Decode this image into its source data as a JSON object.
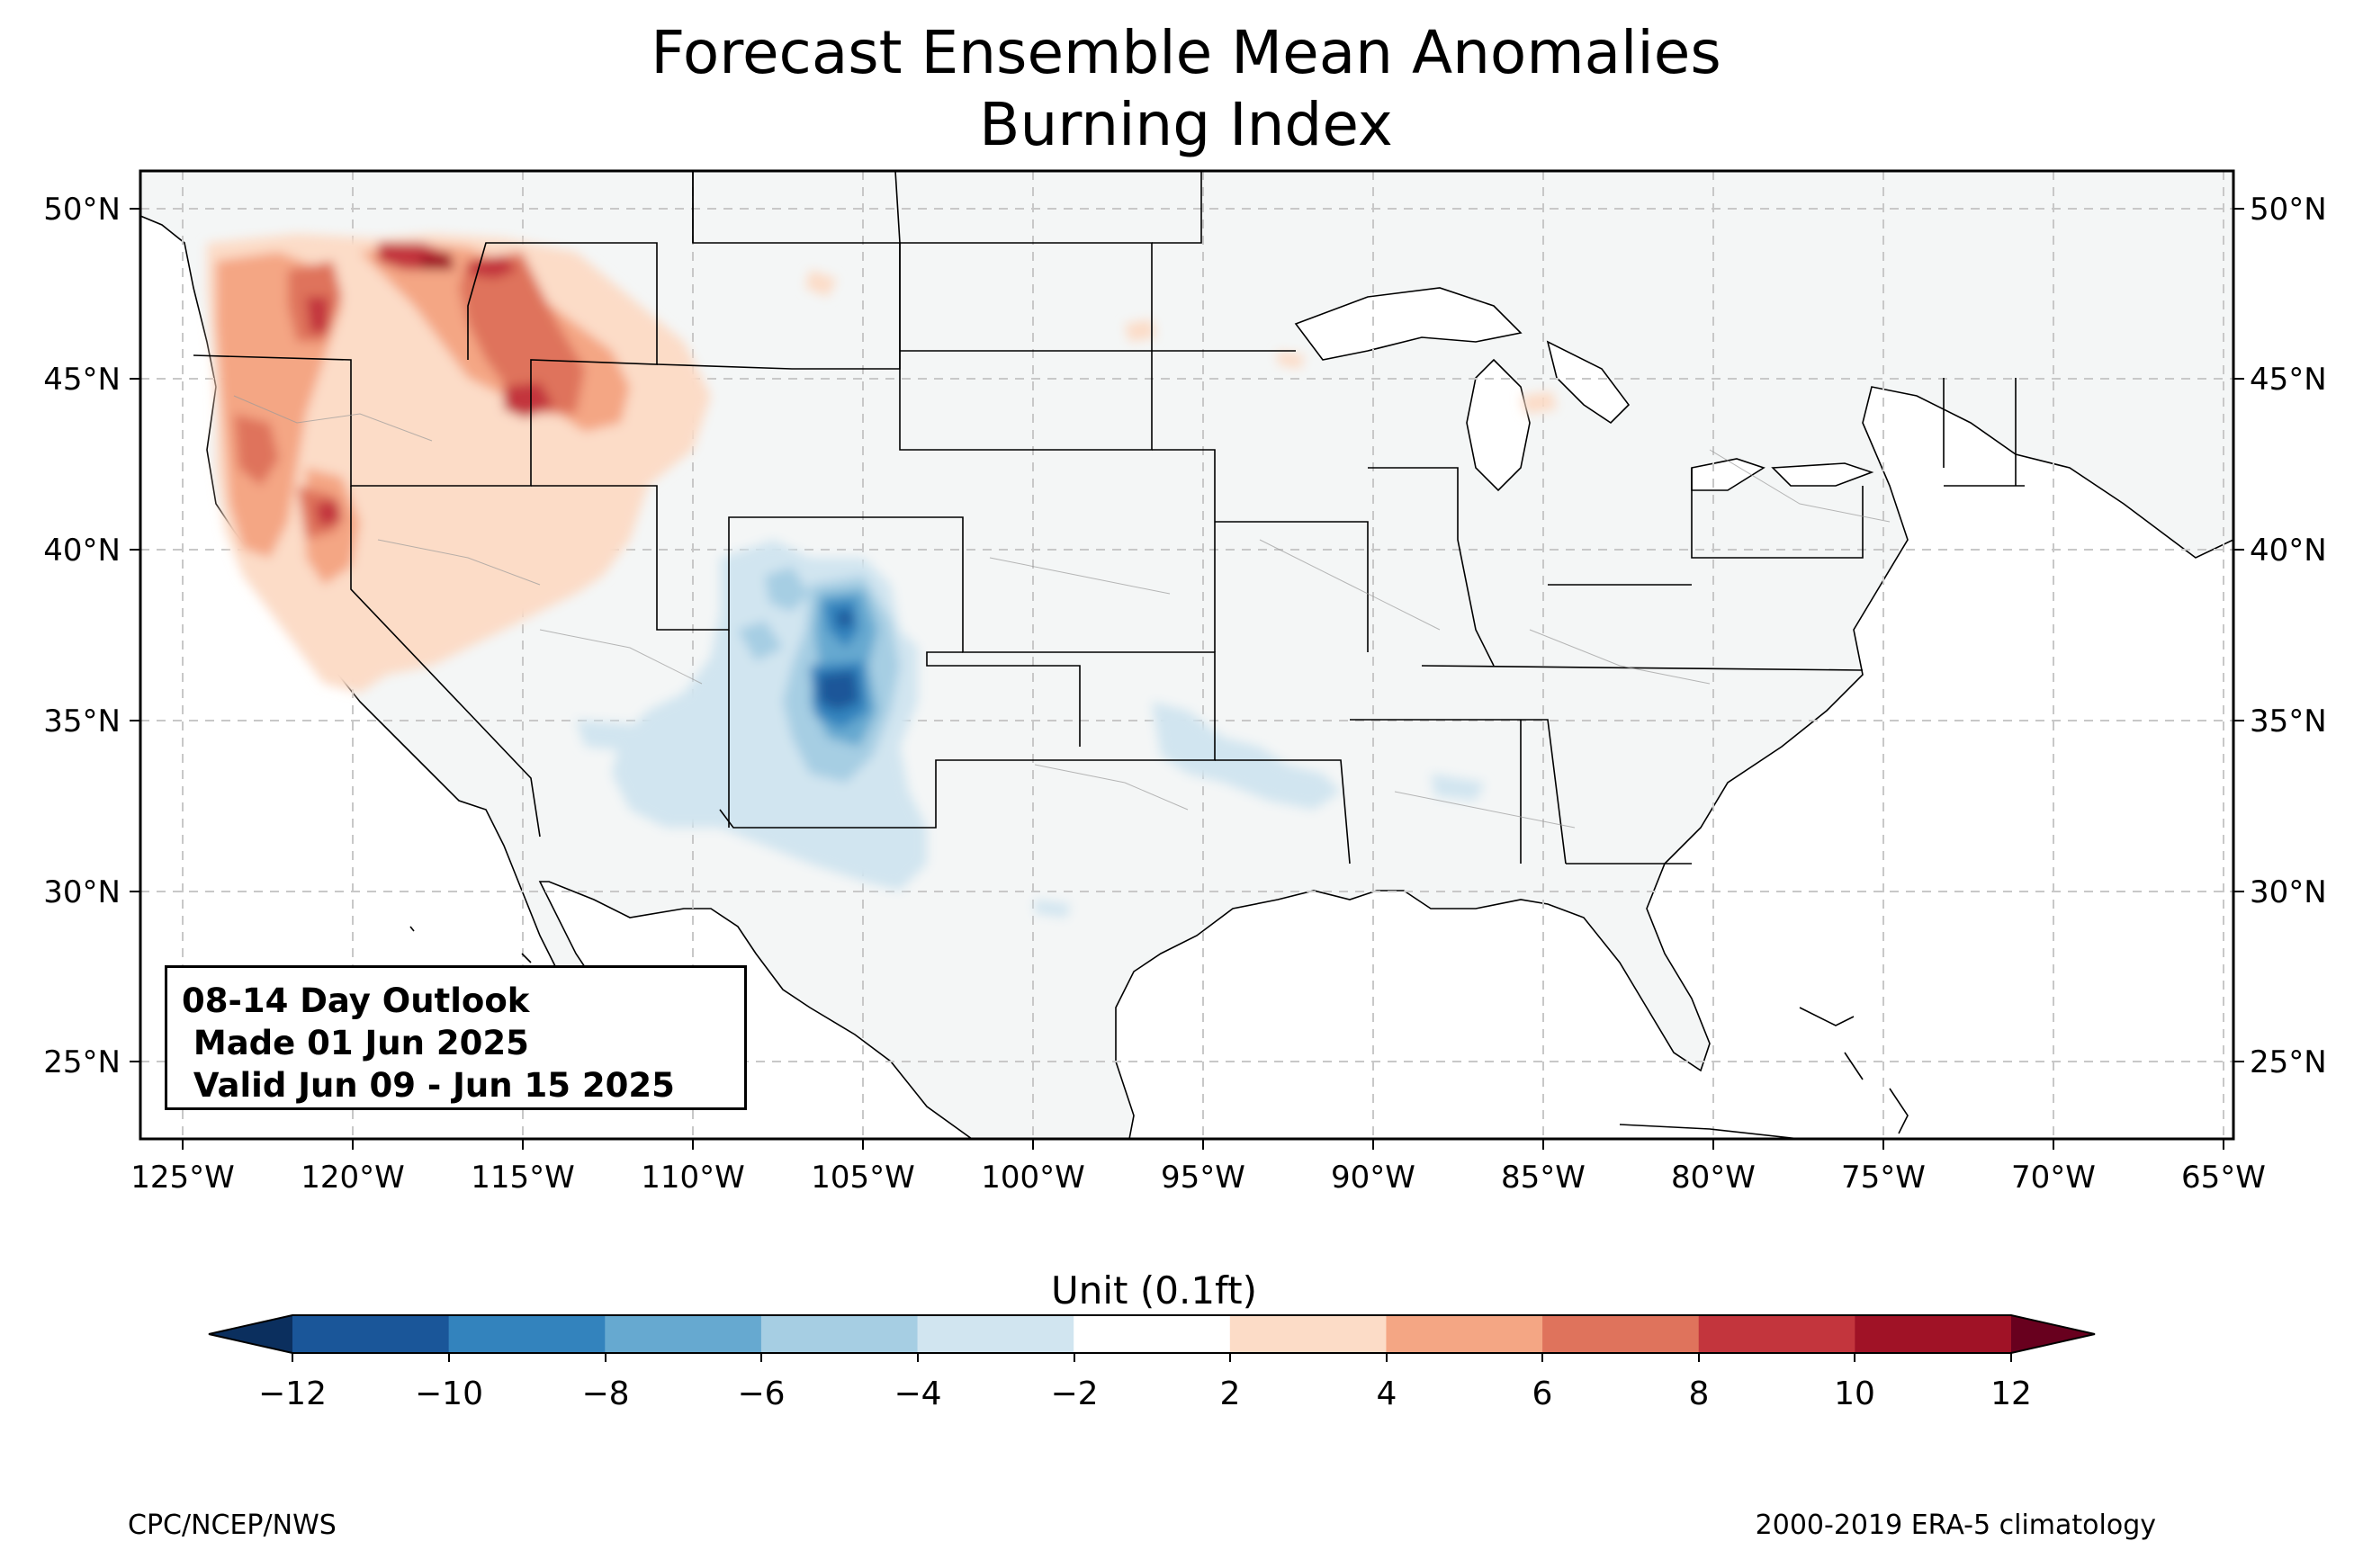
{
  "title_line1": "Forecast Ensemble Mean Anomalies",
  "title_line2": "Burning Index",
  "info_box": {
    "line1": "08-14 Day Outlook",
    "line2": " Made 01 Jun 2025",
    "line3": " Valid Jun 09 - Jun 15 2025"
  },
  "lat_labels": [
    "50°N",
    "45°N",
    "40°N",
    "35°N",
    "30°N",
    "25°N"
  ],
  "lon_labels": [
    "125°W",
    "120°W",
    "115°W",
    "110°W",
    "105°W",
    "100°W",
    "95°W",
    "90°W",
    "85°W",
    "80°W",
    "75°W",
    "70°W",
    "65°W"
  ],
  "colorbar": {
    "label": "Unit (0.1ft)",
    "ticks": [
      "−12",
      "−10",
      "−8",
      "−6",
      "−4",
      "−2",
      "2",
      "4",
      "6",
      "8",
      "10",
      "12"
    ],
    "colors": [
      "#1a5699",
      "#3383bd",
      "#66a9d0",
      "#a6cee3",
      "#d1e5f0",
      "#ffffff",
      "#fcdcc7",
      "#f4a684",
      "#df735c",
      "#c3353d",
      "#a01226"
    ],
    "under_color": "#0b2f5e",
    "over_color": "#68001e"
  },
  "footer_left": "CPC/NCEP/NWS",
  "footer_right": "2000-2019 ERA-5 climatology"
}
